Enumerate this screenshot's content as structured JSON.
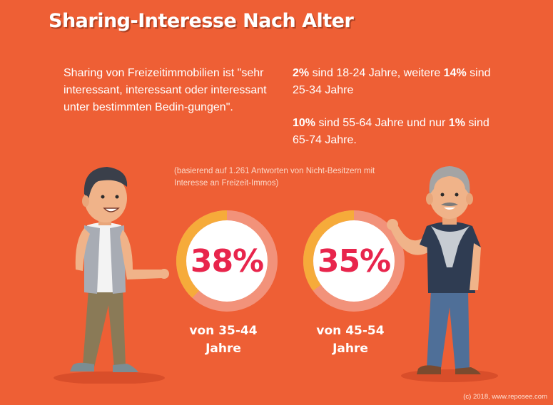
{
  "title": "Sharing-Interesse Nach Alter",
  "intro": "Sharing von Freizeitimmobilien ist \"sehr interessant, interessant oder interessant unter bestimmten Bedin-gungen\".",
  "facts": [
    {
      "a_bold": "2%",
      "a_text": " sind 18-24 Jahre, weitere ",
      "b_bold": "14%",
      "b_text": " sind 25-34 Jahre"
    },
    {
      "a_bold": "10%",
      "a_text": " sind 55-64 Jahre und nur ",
      "b_bold": "1%",
      "b_text": " sind 65-74 Jahre."
    }
  ],
  "note": "(basierend auf 1.261 Antworten von Nicht-Besitzern mit Interesse an Freizeit-Immos)",
  "stats": [
    {
      "value": "38%",
      "percent": 38,
      "label_line1": "von 35-44",
      "label_line2": "Jahre"
    },
    {
      "value": "35%",
      "percent": 35,
      "label_line1": "von 45-54",
      "label_line2": "Jahre"
    }
  ],
  "copyright": "(c) 2018, www.reposee.com",
  "colors": {
    "background": "#ee5f35",
    "ring_track": "#f2927a",
    "ring_fill": "#f6ab3a",
    "percent_text": "#e8254c"
  },
  "illustrations": [
    "young-man-with-vest",
    "older-man-with-mustache"
  ]
}
